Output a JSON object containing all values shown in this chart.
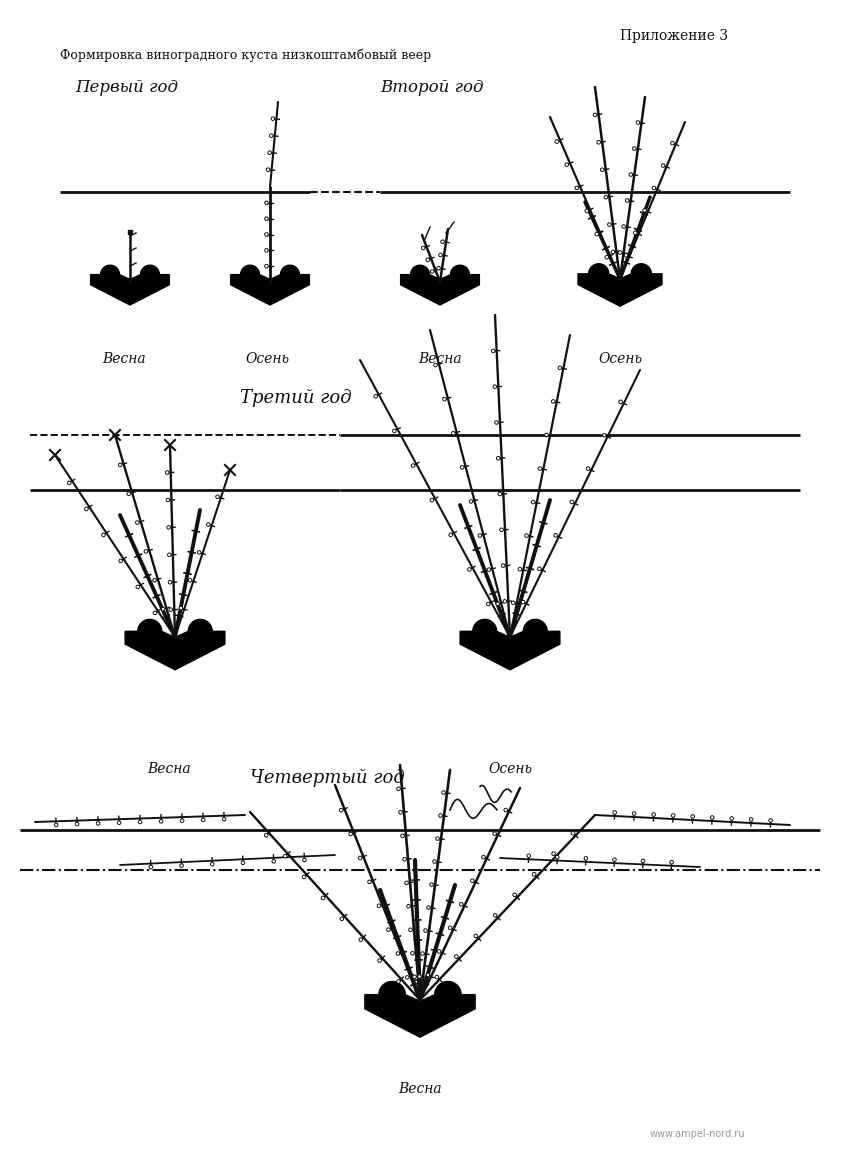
{
  "title_right": "Приложение 3",
  "subtitle": "Формировка виноградного куста низкоштамбовый веер",
  "year1_label": "Первый год",
  "year2_label": "Второй год",
  "year3_label": "Третий год",
  "year4_label": "Четвертый год",
  "spring_label": "Весна",
  "autumn_label": "Осень",
  "website": "www.ampel-nord.ru",
  "bg_color": "#ffffff",
  "line_color": "#111111",
  "text_color": "#111111",
  "title_fontsize": 10,
  "subtitle_fontsize": 9,
  "year_fontsize": 12,
  "season_fontsize": 10
}
